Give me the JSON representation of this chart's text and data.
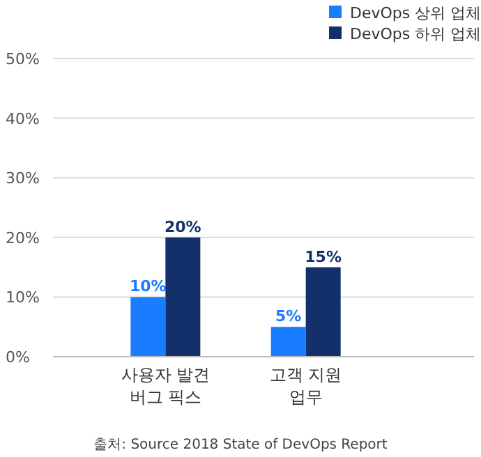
{
  "chart_data": {
    "type": "bar",
    "categories": [
      "사용자 발견\n버그 픽스",
      "고객 지원\n업무"
    ],
    "series": [
      {
        "name": "DevOps 상위 업체",
        "color": "#1a7cff",
        "values": [
          10,
          5
        ],
        "value_labels": [
          "10%",
          "5%"
        ]
      },
      {
        "name": "DevOps 하위 업체",
        "color": "#14306b",
        "values": [
          20,
          15
        ],
        "value_labels": [
          "20%",
          "15%"
        ]
      }
    ],
    "ylim": [
      0,
      50
    ],
    "yticks": [
      {
        "value": 0,
        "label": "0%"
      },
      {
        "value": 10,
        "label": "10%"
      },
      {
        "value": 20,
        "label": "20%"
      },
      {
        "value": 30,
        "label": "30%"
      },
      {
        "value": 40,
        "label": "40%"
      },
      {
        "value": 50,
        "label": "50%"
      }
    ],
    "grid": "y",
    "legend": "top right",
    "annotations": [
      "출처: Source 2018 State of DevOps Report"
    ]
  }
}
